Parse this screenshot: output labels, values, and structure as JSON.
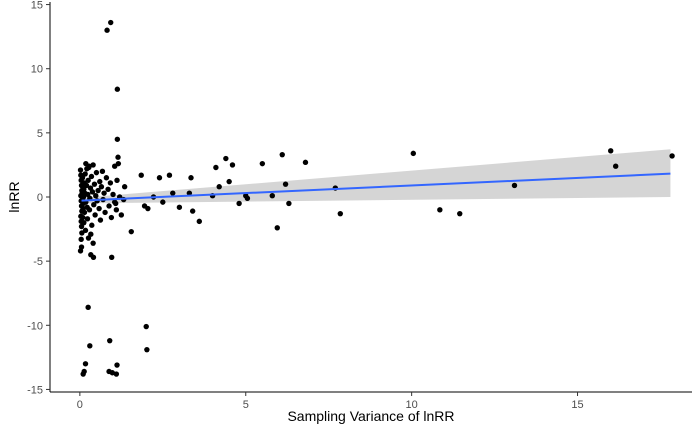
{
  "chart_data": {
    "type": "scatter",
    "xlabel": "Sampling Variance of lnRR",
    "ylabel": "lnRR",
    "xlim": [
      -0.9,
      18.45
    ],
    "ylim": [
      -15.2,
      15.2
    ],
    "xticks": [
      0,
      5,
      10,
      15
    ],
    "yticks": [
      -15,
      -10,
      -5,
      0,
      5,
      10,
      15
    ],
    "grid": false,
    "point_color": "#000000",
    "fit_line_color": "#3366ff",
    "ribbon_color": "#d3d3d3",
    "fit": {
      "x": [
        0.05,
        17.8
      ],
      "y": [
        -0.28,
        1.82
      ],
      "lower": [
        -0.5,
        0.0
      ],
      "upper": [
        -0.06,
        3.72
      ]
    },
    "points": [
      [
        0.02,
        2.1
      ],
      [
        0.03,
        1.7
      ],
      [
        0.04,
        1.3
      ],
      [
        0.05,
        0.9
      ],
      [
        0.06,
        0.5
      ],
      [
        0.03,
        0.1
      ],
      [
        0.04,
        -0.3
      ],
      [
        0.05,
        -0.7
      ],
      [
        0.06,
        -1.1
      ],
      [
        0.03,
        -1.5
      ],
      [
        0.04,
        -1.9
      ],
      [
        0.05,
        -2.3
      ],
      [
        0.06,
        -2.8
      ],
      [
        0.04,
        -3.3
      ],
      [
        0.05,
        -3.9
      ],
      [
        0.02,
        -4.2
      ],
      [
        0.07,
        0.3
      ],
      [
        0.08,
        -0.2
      ],
      [
        0.09,
        0.8
      ],
      [
        0.1,
        -0.9
      ],
      [
        0.08,
        1.5
      ],
      [
        0.09,
        -1.6
      ],
      [
        0.11,
        0.0
      ],
      [
        0.12,
        0.6
      ],
      [
        0.1,
        -0.5
      ],
      [
        0.13,
        1.1
      ],
      [
        0.14,
        -1.2
      ],
      [
        0.15,
        0.3
      ],
      [
        0.12,
        -2.0
      ],
      [
        0.16,
        1.8
      ],
      [
        0.18,
        -0.4
      ],
      [
        0.2,
        0.9
      ],
      [
        0.17,
        -2.6
      ],
      [
        0.21,
        2.2
      ],
      [
        0.22,
        -0.8
      ],
      [
        0.24,
        0.2
      ],
      [
        0.25,
        1.3
      ],
      [
        0.23,
        -1.7
      ],
      [
        0.26,
        -3.2
      ],
      [
        0.28,
        2.4
      ],
      [
        0.3,
        -0.1
      ],
      [
        0.32,
        0.7
      ],
      [
        0.29,
        -1.0
      ],
      [
        0.35,
        1.6
      ],
      [
        0.36,
        -2.2
      ],
      [
        0.38,
        0.4
      ],
      [
        0.4,
        2.5
      ],
      [
        0.42,
        -0.6
      ],
      [
        0.44,
        1.0
      ],
      [
        0.46,
        -1.4
      ],
      [
        0.48,
        0.1
      ],
      [
        0.5,
        1.9
      ],
      [
        0.52,
        -0.3
      ],
      [
        0.55,
        0.5
      ],
      [
        0.58,
        -0.9
      ],
      [
        0.6,
        1.2
      ],
      [
        0.62,
        -1.8
      ],
      [
        0.65,
        0.8
      ],
      [
        0.68,
        2.0
      ],
      [
        0.7,
        -0.2
      ],
      [
        0.73,
        0.3
      ],
      [
        0.76,
        -1.2
      ],
      [
        0.8,
        1.5
      ],
      [
        0.85,
        0.6
      ],
      [
        0.88,
        -0.7
      ],
      [
        0.92,
        1.1
      ],
      [
        0.95,
        -1.6
      ],
      [
        1.0,
        0.2
      ],
      [
        1.05,
        2.4
      ],
      [
        1.08,
        -0.5
      ],
      [
        1.12,
        1.3
      ],
      [
        1.15,
        3.1
      ],
      [
        1.16,
        2.6
      ],
      [
        1.1,
        -1.0
      ],
      [
        1.2,
        0.0
      ],
      [
        0.18,
        2.6
      ],
      [
        0.27,
        2.3
      ],
      [
        0.33,
        -2.9
      ],
      [
        0.4,
        -3.6
      ],
      [
        0.33,
        -4.5
      ],
      [
        0.41,
        -4.7
      ],
      [
        1.32,
        -0.2
      ],
      [
        1.25,
        -1.4
      ],
      [
        1.35,
        0.8
      ],
      [
        1.05,
        -0.4
      ],
      [
        0.82,
        13.0
      ],
      [
        0.93,
        13.6
      ],
      [
        1.13,
        8.4
      ],
      [
        1.13,
        4.5
      ],
      [
        0.96,
        -4.7
      ],
      [
        0.25,
        -8.6
      ],
      [
        0.3,
        -11.6
      ],
      [
        0.9,
        -11.2
      ],
      [
        0.17,
        -13.0
      ],
      [
        0.13,
        -13.6
      ],
      [
        0.1,
        -13.8
      ],
      [
        0.88,
        -13.6
      ],
      [
        0.98,
        -13.7
      ],
      [
        1.1,
        -13.8
      ],
      [
        1.12,
        -13.1
      ],
      [
        2.0,
        -10.1
      ],
      [
        2.02,
        -11.9
      ],
      [
        1.55,
        -2.7
      ],
      [
        1.85,
        1.7
      ],
      [
        1.95,
        -0.7
      ],
      [
        2.05,
        -0.9
      ],
      [
        2.22,
        0.0
      ],
      [
        2.4,
        1.5
      ],
      [
        2.7,
        1.7
      ],
      [
        2.5,
        -0.4
      ],
      [
        2.8,
        0.3
      ],
      [
        3.0,
        -0.8
      ],
      [
        3.3,
        0.3
      ],
      [
        3.35,
        1.5
      ],
      [
        3.4,
        -1.1
      ],
      [
        3.6,
        -1.9
      ],
      [
        4.0,
        0.1
      ],
      [
        4.1,
        2.3
      ],
      [
        4.2,
        0.8
      ],
      [
        4.4,
        3.0
      ],
      [
        4.6,
        2.5
      ],
      [
        4.5,
        1.2
      ],
      [
        4.8,
        -0.5
      ],
      [
        5.0,
        0.1
      ],
      [
        5.05,
        -0.1
      ],
      [
        5.5,
        2.6
      ],
      [
        5.8,
        0.1
      ],
      [
        5.95,
        -2.4
      ],
      [
        6.1,
        3.3
      ],
      [
        6.3,
        -0.5
      ],
      [
        6.2,
        1.0
      ],
      [
        6.8,
        2.7
      ],
      [
        7.7,
        0.7
      ],
      [
        7.85,
        -1.3
      ],
      [
        10.05,
        3.4
      ],
      [
        10.85,
        -1.0
      ],
      [
        11.45,
        -1.3
      ],
      [
        13.1,
        0.9
      ],
      [
        16.0,
        3.6
      ],
      [
        16.15,
        2.4
      ],
      [
        17.85,
        3.2
      ]
    ]
  }
}
